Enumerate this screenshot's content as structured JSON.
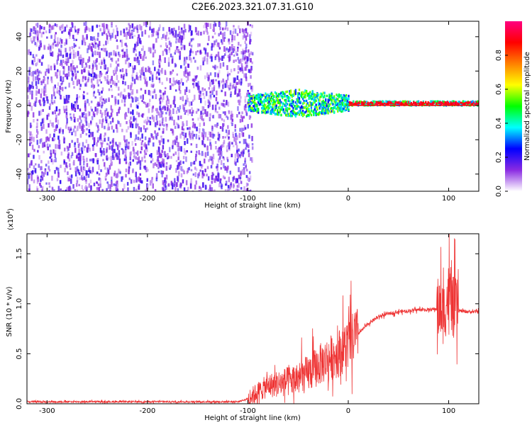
{
  "title": "C2E6.2023.321.07.31.G10",
  "chart_data": [
    {
      "type": "heatmap",
      "xlabel": "Height of straight line (km)",
      "ylabel": "Frequency (Hz)",
      "xlim": [
        -320,
        130
      ],
      "ylim": [
        -50,
        49
      ],
      "xticks": [
        -300,
        -200,
        -100,
        0,
        100
      ],
      "yticks": [
        -40,
        -20,
        0,
        20,
        40
      ],
      "grid": false,
      "noise_region_x": [
        -320,
        -100
      ],
      "signal_band_hz": [
        -5,
        5
      ],
      "colorbar": {
        "label": "Normalized spectral amplitude",
        "range": [
          0.0,
          1.0
        ],
        "ticks": [
          0.0,
          0.2,
          0.4,
          0.6,
          0.8
        ],
        "tick_labels": [
          "0.0",
          "0.2",
          "0.4",
          "0.6",
          "0.8"
        ],
        "colors": [
          "#ffffff",
          "#8a2be2",
          "#0000ff",
          "#00ffff",
          "#00ff00",
          "#ffff00",
          "#ff8000",
          "#ff0000",
          "#ff0080"
        ]
      }
    },
    {
      "type": "line",
      "xlabel": "Height of straight line (km)",
      "ylabel": "SNR (10 * v/v)",
      "scale_label": "(x10",
      "scale_exp": "4",
      "scale_close": ")",
      "xlim": [
        -320,
        130
      ],
      "ylim": [
        0.0,
        1.7
      ],
      "xticks": [
        -300,
        -200,
        -100,
        0,
        100
      ],
      "yticks": [
        0.0,
        0.5,
        1.0,
        1.5
      ],
      "ytick_labels": [
        "0.0",
        "0.5",
        "1.0",
        "1.5"
      ],
      "grid": false,
      "series": [
        {
          "color": "#ee3333",
          "x": [
            -320,
            -300,
            -250,
            -200,
            -150,
            -110,
            -100,
            -90,
            -80,
            -70,
            -60,
            -50,
            -40,
            -30,
            -20,
            -10,
            0,
            10,
            20,
            30,
            40,
            50,
            60,
            70,
            80,
            90,
            95,
            100,
            105,
            110,
            120,
            130
          ],
          "y": [
            0.02,
            0.02,
            0.02,
            0.02,
            0.02,
            0.02,
            0.05,
            0.12,
            0.18,
            0.2,
            0.22,
            0.25,
            0.3,
            0.38,
            0.45,
            0.5,
            0.6,
            0.7,
            0.8,
            0.87,
            0.9,
            0.92,
            0.93,
            0.94,
            0.94,
            0.95,
            0.9,
            1.1,
            0.95,
            0.93,
            0.92,
            0.92
          ]
        }
      ]
    }
  ]
}
